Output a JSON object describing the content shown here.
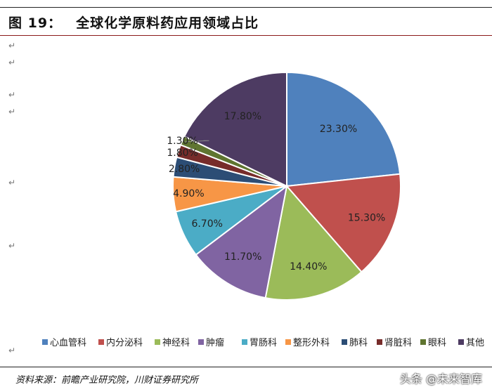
{
  "figure": {
    "label": "图 19：",
    "title": "全球化学原料药应用领域占比",
    "source": "资料来源：前瞻产业研究院，川财证券研究所",
    "watermark": "头条 @未来智库"
  },
  "chart_data": {
    "type": "pie",
    "title": "",
    "categories": [
      "心血管科",
      "内分泌科",
      "神经科",
      "肿瘤",
      "胃肠科",
      "整形外科",
      "肺科",
      "肾脏科",
      "眼科",
      "其他"
    ],
    "values": [
      23.3,
      15.3,
      14.4,
      11.7,
      6.7,
      4.9,
      2.8,
      1.8,
      1.3,
      17.8
    ],
    "labels": [
      "23.30%",
      "15.30%",
      "14.40%",
      "11.70%",
      "6.70%",
      "4.90%",
      "2.80%",
      "1.80%",
      "1.30%",
      "17.80%"
    ],
    "colors": [
      "#4f81bd",
      "#c0504d",
      "#9bbb59",
      "#8064a2",
      "#4bacc6",
      "#f79646",
      "#2c4d75",
      "#772c2a",
      "#5f7530",
      "#4d3b62"
    ],
    "legend": "bottom",
    "start_angle_deg": 0,
    "direction": "clockwise"
  }
}
